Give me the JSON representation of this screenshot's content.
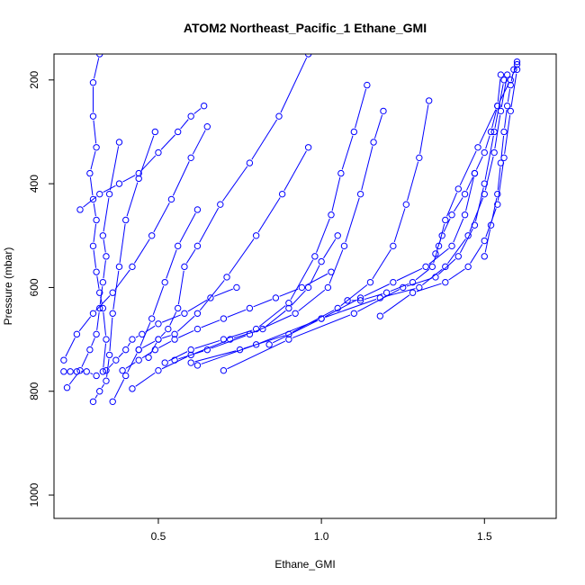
{
  "chart_data": {
    "type": "line",
    "title": "ATOM2 Northeast_Pacific_1 Ethane_GMI",
    "xlabel": "Ethane_GMI",
    "ylabel": "Pressure (mbar)",
    "xlim": [
      0.18,
      1.72
    ],
    "ylim": [
      1045,
      150
    ],
    "y_reversed": true,
    "xticks": [
      0.5,
      1.0,
      1.5
    ],
    "xtick_labels": [
      "0.5",
      "1.0",
      "1.5"
    ],
    "yticks": [
      200,
      400,
      600,
      800,
      1000
    ],
    "ytick_labels": [
      "200",
      "400",
      "600",
      "800",
      "1000"
    ],
    "grid": false,
    "legend": "none",
    "series_color": "#0000ff",
    "marker": "open-circle",
    "series": [
      {
        "x": [
          0.21,
          0.23,
          0.25,
          0.28,
          0.31,
          0.33,
          0.34,
          0.33,
          0.32,
          0.31,
          0.3,
          0.31,
          0.3,
          0.29,
          0.31,
          0.3,
          0.3,
          0.32,
          0.35,
          0.37
        ],
        "y": [
          762,
          762,
          762,
          762,
          770,
          762,
          700,
          640,
          610,
          570,
          520,
          470,
          430,
          380,
          330,
          270,
          205,
          150,
          140,
          130
        ]
      },
      {
        "x": [
          0.22,
          0.26,
          0.29,
          0.31,
          0.32,
          0.33,
          0.34,
          0.33,
          0.35,
          0.38
        ],
        "y": [
          793,
          760,
          720,
          690,
          640,
          590,
          540,
          500,
          420,
          320
        ]
      },
      {
        "x": [
          0.3,
          0.32,
          0.34,
          0.35,
          0.36,
          0.38,
          0.4,
          0.44,
          0.49
        ],
        "y": [
          820,
          800,
          780,
          730,
          650,
          560,
          470,
          390,
          300
        ]
      },
      {
        "x": [
          0.34,
          0.37,
          0.4,
          0.42,
          0.45,
          0.5,
          0.58,
          0.66,
          0.74
        ],
        "y": [
          760,
          740,
          720,
          700,
          690,
          670,
          650,
          620,
          600
        ]
      },
      {
        "x": [
          0.47,
          0.5,
          0.53,
          0.56,
          0.58,
          0.62,
          0.69,
          0.78,
          0.87,
          0.96
        ],
        "y": [
          735,
          700,
          680,
          640,
          560,
          520,
          440,
          360,
          270,
          150
        ]
      },
      {
        "x": [
          0.44,
          0.5,
          0.55,
          0.62,
          0.71,
          0.8,
          0.88,
          0.96
        ],
        "y": [
          720,
          700,
          690,
          650,
          580,
          500,
          420,
          330
        ]
      },
      {
        "x": [
          0.52,
          0.6,
          0.7,
          0.8,
          0.9,
          0.98,
          1.03,
          1.06,
          1.1,
          1.14
        ],
        "y": [
          745,
          720,
          700,
          680,
          630,
          540,
          460,
          380,
          300,
          210
        ]
      },
      {
        "x": [
          0.55,
          0.65,
          0.78,
          0.92,
          1.02,
          1.07,
          1.12,
          1.16,
          1.19
        ],
        "y": [
          740,
          720,
          690,
          650,
          600,
          520,
          420,
          320,
          260
        ]
      },
      {
        "x": [
          0.6,
          0.75,
          0.9,
          1.05,
          1.15,
          1.22,
          1.26,
          1.3,
          1.33
        ],
        "y": [
          745,
          720,
          690,
          640,
          590,
          520,
          440,
          350,
          240
        ]
      },
      {
        "x": [
          0.62,
          0.8,
          1.0,
          1.12,
          1.22,
          1.32,
          1.4,
          1.44,
          1.47
        ],
        "y": [
          750,
          710,
          660,
          620,
          590,
          560,
          520,
          460,
          380
        ]
      },
      {
        "x": [
          0.7,
          0.9,
          1.1,
          1.25,
          1.35,
          1.42,
          1.47,
          1.5,
          1.53,
          1.56
        ],
        "y": [
          760,
          700,
          650,
          600,
          580,
          540,
          480,
          400,
          300,
          200
        ]
      },
      {
        "x": [
          0.84,
          1.0,
          1.18,
          1.3,
          1.38,
          1.45,
          1.5,
          1.53,
          1.55,
          1.57
        ],
        "y": [
          710,
          660,
          620,
          600,
          560,
          500,
          420,
          340,
          260,
          190
        ]
      },
      {
        "x": [
          1.08,
          1.12,
          1.2,
          1.28,
          1.34,
          1.36,
          1.38,
          1.42,
          1.48,
          1.54,
          1.58,
          1.6
        ],
        "y": [
          625,
          625,
          610,
          590,
          560,
          520,
          470,
          410,
          330,
          250,
          200,
          170
        ]
      },
      {
        "x": [
          1.18,
          1.28,
          1.38,
          1.45,
          1.5,
          1.54,
          1.56,
          1.58,
          1.6
        ],
        "y": [
          655,
          610,
          590,
          560,
          510,
          440,
          350,
          260,
          180
        ]
      },
      {
        "x": [
          1.35,
          1.37,
          1.4,
          1.44,
          1.47,
          1.5,
          1.52,
          1.54,
          1.55
        ],
        "y": [
          535,
          500,
          460,
          420,
          380,
          340,
          300,
          250,
          190
        ]
      },
      {
        "x": [
          1.5,
          1.52,
          1.54,
          1.55,
          1.56,
          1.57,
          1.58,
          1.59,
          1.6
        ],
        "y": [
          540,
          480,
          420,
          360,
          300,
          250,
          210,
          180,
          165
        ]
      },
      {
        "x": [
          0.21,
          0.25,
          0.3,
          0.36,
          0.42,
          0.48,
          0.54,
          0.6,
          0.65
        ],
        "y": [
          740,
          690,
          650,
          610,
          560,
          500,
          430,
          350,
          290
        ]
      },
      {
        "x": [
          0.26,
          0.32,
          0.38,
          0.44,
          0.5,
          0.56,
          0.6,
          0.64
        ],
        "y": [
          450,
          420,
          400,
          380,
          340,
          300,
          270,
          250
        ]
      },
      {
        "x": [
          0.36,
          0.4,
          0.44,
          0.48,
          0.52,
          0.56,
          0.62
        ],
        "y": [
          820,
          770,
          720,
          660,
          590,
          520,
          450
        ]
      },
      {
        "x": [
          0.39,
          0.44,
          0.49,
          0.55,
          0.62,
          0.7,
          0.78,
          0.86,
          0.94,
          1.03
        ],
        "y": [
          760,
          740,
          720,
          700,
          680,
          660,
          640,
          620,
          600,
          570
        ]
      },
      {
        "x": [
          0.42,
          0.5,
          0.6,
          0.72,
          0.82,
          0.9,
          0.96,
          1.0,
          1.05
        ],
        "y": [
          795,
          760,
          730,
          700,
          680,
          640,
          600,
          550,
          500
        ]
      }
    ]
  }
}
